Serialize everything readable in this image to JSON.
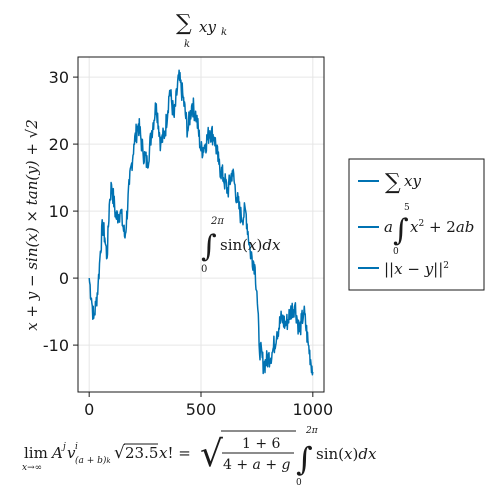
{
  "chart_data": {
    "type": "line",
    "title": "∑ₖ xyₖ",
    "xlabel": "lim A^j v^i_(a+b)_k √23.5 x! = √((1+6)/(4+a+g)) ∫₀^2π sin(x)dx",
    "ylabel": "x + y − sin(x) × tan(y) + √2",
    "annotation": "∫₀^2π sin(x)dx",
    "xlim": [
      -50,
      1050
    ],
    "ylim": [
      -17,
      33
    ],
    "xticks": [
      0,
      500,
      1000
    ],
    "yticks": [
      -10,
      0,
      10,
      20,
      30
    ],
    "xtick_labels": [
      "0",
      "500",
      "1000"
    ],
    "ytick_labels": [
      "-10",
      "0",
      "10",
      "20",
      "30"
    ],
    "grid": true,
    "legend_position": "right",
    "color": "#0072B2",
    "series": [
      {
        "name": "∑ xy",
        "x": [
          0,
          10,
          20,
          30,
          40,
          50,
          60,
          70,
          80,
          90,
          100,
          120,
          140,
          160,
          180,
          200,
          220,
          240,
          260,
          280,
          300,
          320,
          340,
          360,
          380,
          400,
          420,
          440,
          460,
          480,
          500,
          520,
          540,
          560,
          580,
          600,
          620,
          640,
          660,
          680,
          700,
          720,
          740,
          750,
          760,
          780,
          800,
          820,
          840,
          860,
          880,
          900,
          920,
          940,
          960,
          980,
          1000
        ],
        "y": [
          0,
          -3,
          -6,
          -4,
          -1,
          4,
          8,
          6,
          3,
          11,
          14,
          9,
          10,
          6,
          14,
          20,
          23,
          19,
          17,
          22,
          26,
          20,
          22,
          28,
          24,
          30,
          27,
          22,
          26,
          24,
          19,
          20,
          22,
          21,
          17,
          15,
          13,
          16,
          12,
          9,
          10,
          4,
          2,
          -2,
          -10,
          -13,
          -12,
          -11,
          -8,
          -6,
          -7,
          -5,
          -4,
          -8,
          -5,
          -10,
          -14
        ]
      }
    ],
    "legend_labels": [
      "∑ xy",
      "a∫₀⁵ x² + 2ab",
      "||x − y||²"
    ]
  }
}
